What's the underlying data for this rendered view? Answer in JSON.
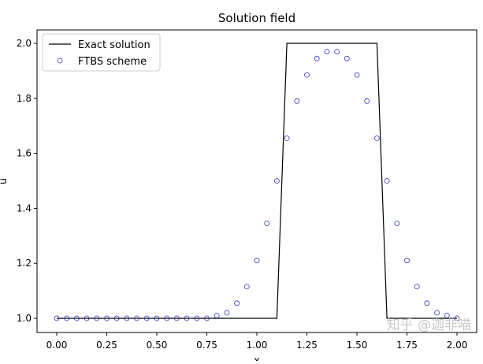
{
  "chart_data": {
    "type": "line",
    "title": "Solution field",
    "xlabel": "x",
    "ylabel": "u",
    "xlim": [
      -0.1,
      2.1
    ],
    "ylim": [
      0.95,
      2.05
    ],
    "xticks": [
      "0.00",
      "0.25",
      "0.50",
      "0.75",
      "1.00",
      "1.25",
      "1.50",
      "1.75",
      "2.00"
    ],
    "yticks": [
      "1.0",
      "1.2",
      "1.4",
      "1.6",
      "1.8",
      "2.0"
    ],
    "grid": false,
    "legend_position": "top-left",
    "series": [
      {
        "name": "Exact solution",
        "style": "line",
        "color": "#000000",
        "x": [
          0,
          1.1,
          1.15,
          1.6,
          1.65,
          2.0
        ],
        "y": [
          1,
          1,
          2,
          2,
          1,
          1
        ]
      },
      {
        "name": "FTBS scheme",
        "style": "open-circle",
        "color": "#3333cc",
        "x": [
          0,
          0.05,
          0.1,
          0.15,
          0.2,
          0.25,
          0.3,
          0.35,
          0.4,
          0.45,
          0.5,
          0.55,
          0.6,
          0.65,
          0.7,
          0.75,
          0.8,
          0.85,
          0.9,
          0.95,
          1.0,
          1.05,
          1.1,
          1.15,
          1.2,
          1.25,
          1.3,
          1.35,
          1.4,
          1.45,
          1.5,
          1.55,
          1.6,
          1.65,
          1.7,
          1.75,
          1.8,
          1.85,
          1.9,
          1.95,
          2.0
        ],
        "y": [
          1,
          1,
          1,
          1,
          1,
          1,
          1,
          1,
          1,
          1,
          1,
          1,
          1,
          1,
          1,
          1.0,
          1.01,
          1.02,
          1.055,
          1.115,
          1.21,
          1.345,
          1.5,
          1.655,
          1.79,
          1.885,
          1.945,
          1.97,
          1.97,
          1.945,
          1.885,
          1.79,
          1.655,
          1.5,
          1.345,
          1.21,
          1.115,
          1.055,
          1.02,
          1.01,
          1.0
        ]
      }
    ]
  },
  "watermark": "知乎 @迦非喵"
}
